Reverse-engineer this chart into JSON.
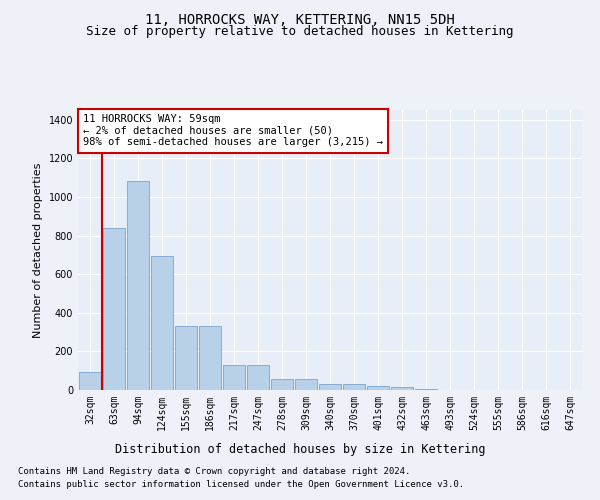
{
  "title": "11, HORROCKS WAY, KETTERING, NN15 5DH",
  "subtitle": "Size of property relative to detached houses in Kettering",
  "xlabel": "Distribution of detached houses by size in Kettering",
  "ylabel": "Number of detached properties",
  "categories": [
    "32sqm",
    "63sqm",
    "94sqm",
    "124sqm",
    "155sqm",
    "186sqm",
    "217sqm",
    "247sqm",
    "278sqm",
    "309sqm",
    "340sqm",
    "370sqm",
    "401sqm",
    "432sqm",
    "463sqm",
    "493sqm",
    "524sqm",
    "555sqm",
    "586sqm",
    "616sqm",
    "647sqm"
  ],
  "bar_heights": [
    95,
    840,
    1080,
    695,
    330,
    330,
    130,
    130,
    55,
    55,
    30,
    30,
    20,
    15,
    5,
    0,
    0,
    0,
    0,
    0,
    0
  ],
  "bar_color": "#b8d0e8",
  "bar_edge_color": "#6699cc",
  "vline_color": "#cc0000",
  "annotation_text": "11 HORROCKS WAY: 59sqm\n← 2% of detached houses are smaller (50)\n98% of semi-detached houses are larger (3,215) →",
  "annotation_box_color": "#ffffff",
  "annotation_box_edge": "#cc0000",
  "ylim": [
    0,
    1450
  ],
  "yticks": [
    0,
    200,
    400,
    600,
    800,
    1000,
    1200,
    1400
  ],
  "bg_color": "#eef2f8",
  "plot_bg_color": "#e8eef8",
  "footer_line1": "Contains HM Land Registry data © Crown copyright and database right 2024.",
  "footer_line2": "Contains public sector information licensed under the Open Government Licence v3.0.",
  "title_fontsize": 10,
  "subtitle_fontsize": 9,
  "xlabel_fontsize": 8.5,
  "ylabel_fontsize": 8,
  "tick_fontsize": 7,
  "footer_fontsize": 6.5,
  "annotation_fontsize": 7.5
}
